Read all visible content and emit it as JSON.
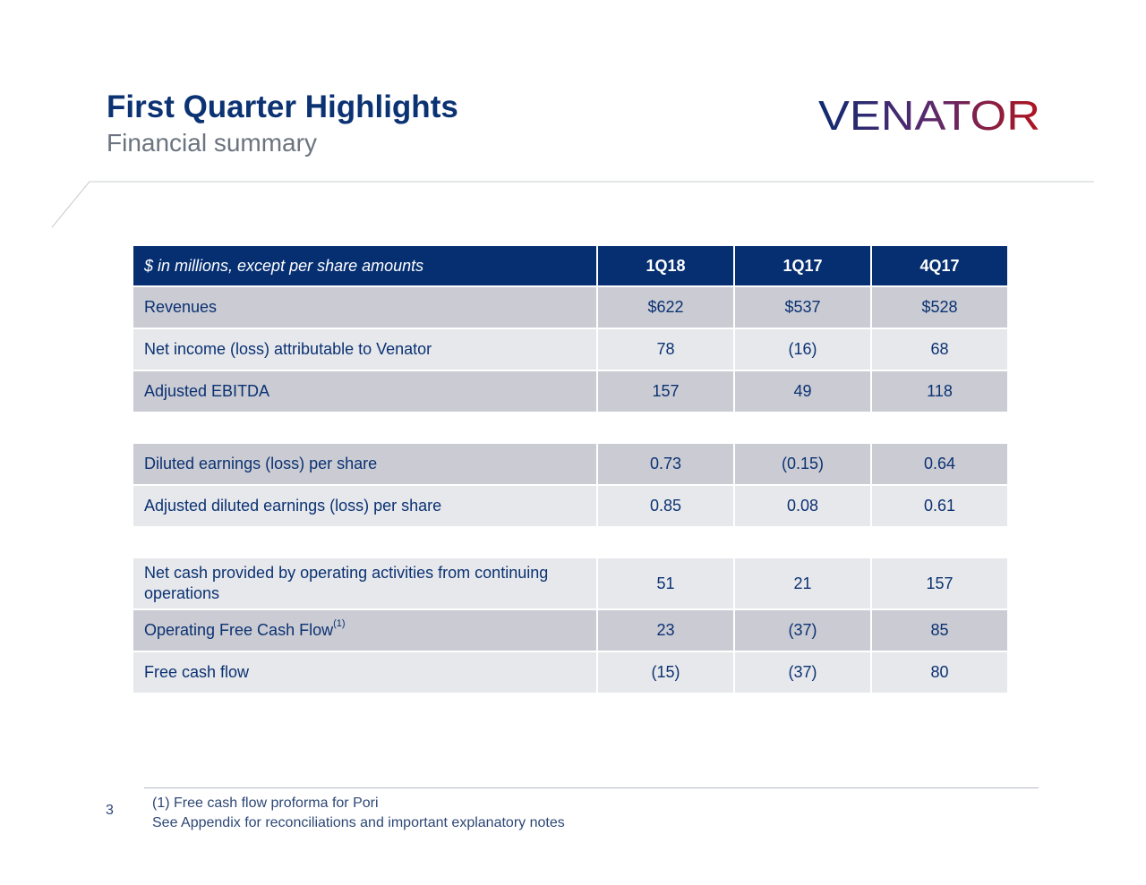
{
  "header": {
    "title": "First Quarter Highlights",
    "subtitle": "Financial summary",
    "logo_text": "VENATOR"
  },
  "colors": {
    "title": "#0b3272",
    "header_row": "#062f72",
    "row_dark": "#cacbd3",
    "row_light": "#e7e8ec",
    "logo_start": "#0e2a72",
    "logo_end": "#b0141e"
  },
  "table": {
    "header": {
      "label": "$ in millions, except per share amounts",
      "c1": "1Q18",
      "c2": "1Q17",
      "c3": "4Q17"
    },
    "revenues": {
      "label": "Revenues",
      "c1": "$622",
      "c2": "$537",
      "c3": "$528"
    },
    "net_income": {
      "label": "Net income (loss) attributable to Venator",
      "c1": "78",
      "c2": "(16)",
      "c3": "68"
    },
    "adj_ebitda": {
      "label": "Adjusted EBITDA",
      "c1": "157",
      "c2": "49",
      "c3": "118"
    },
    "diluted_eps": {
      "label": "Diluted earnings (loss) per share",
      "c1": "0.73",
      "c2": "(0.15)",
      "c3": "0.64"
    },
    "adj_diluted_eps": {
      "label": "Adjusted diluted earnings (loss) per share",
      "c1": "0.85",
      "c2": "0.08",
      "c3": "0.61"
    },
    "net_cash": {
      "label": "Net cash provided by operating activities from continuing operations",
      "c1": "51",
      "c2": "21",
      "c3": "157"
    },
    "op_fcf": {
      "label": "Operating Free Cash Flow",
      "sup": "(1)",
      "c1": "23",
      "c2": "(37)",
      "c3": "85"
    },
    "fcf": {
      "label": "Free cash flow",
      "c1": "(15)",
      "c2": "(37)",
      "c3": "80"
    }
  },
  "footer": {
    "page_number": "3",
    "note1": "(1) Free cash flow proforma for Pori",
    "note2": "See Appendix for reconciliations and important explanatory notes"
  }
}
